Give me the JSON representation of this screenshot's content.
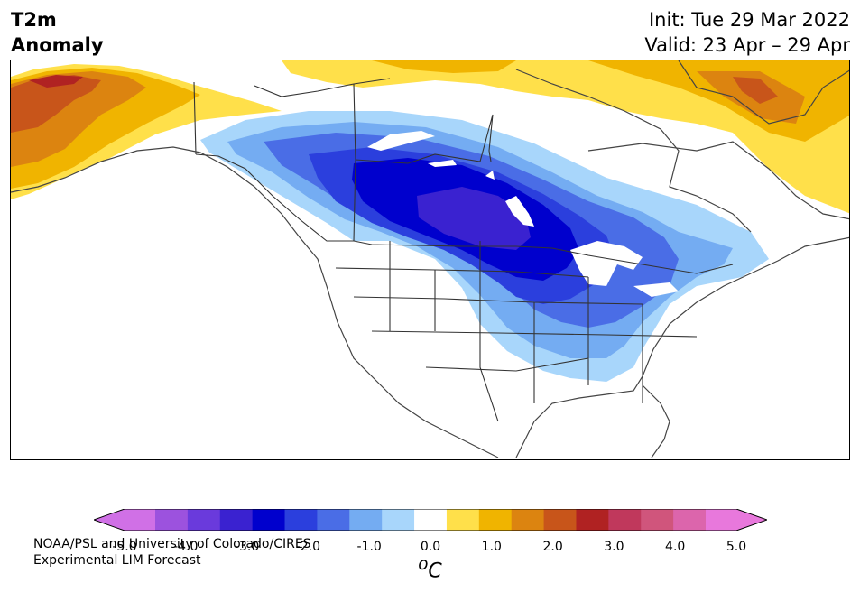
{
  "header": {
    "variable": "T2m",
    "subtitle": "Anomaly",
    "init": "Init: Tue 29 Mar 2022",
    "valid": "Valid: 23 Apr – 29 Apr"
  },
  "credit": {
    "line1": "NOAA/PSL and University of Colorado/CIRES",
    "line2": "Experimental LIM Forecast"
  },
  "colorbar": {
    "colors": [
      "#9c52de",
      "#6a3adc",
      "#3a22d0",
      "#0000cd",
      "#2b3fdd",
      "#4a6de6",
      "#74acf2",
      "#a8d6fb",
      "#ffffff",
      "#ffe04a",
      "#f0b400",
      "#dc8410",
      "#c8551a",
      "#b02222",
      "#c0385c",
      "#d0557c",
      "#dc65ac"
    ],
    "min_extend_color": "#d070e6",
    "max_extend_color": "#e878dc",
    "ticks": [
      "-5.0",
      "-4.0",
      "-3.0",
      "-2.0",
      "-1.0",
      "0.0",
      "1.0",
      "2.0",
      "3.0",
      "4.0",
      "5.0"
    ],
    "unit_base": "o",
    "unit_label": "C"
  }
}
